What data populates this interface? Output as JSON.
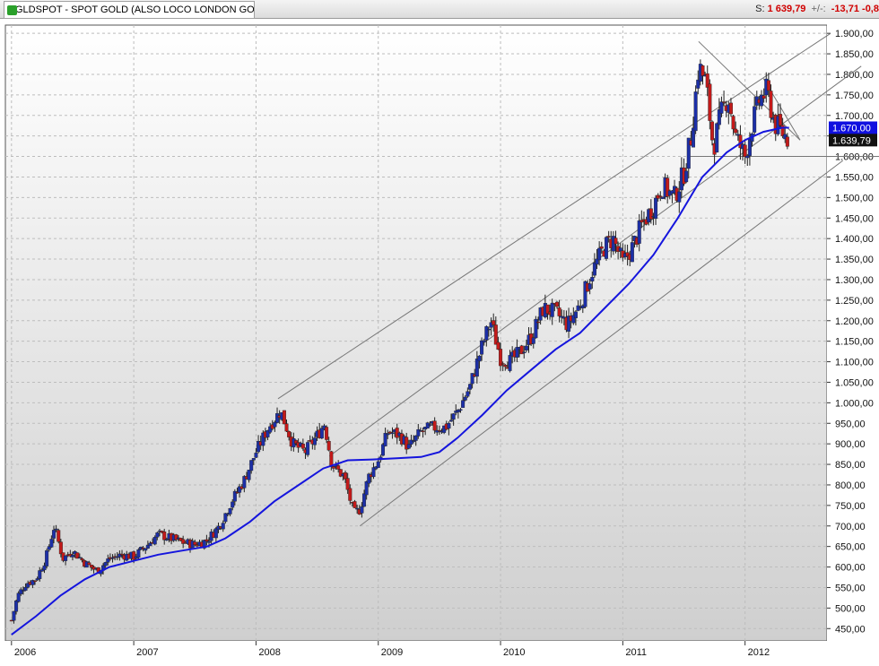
{
  "header": {
    "symbol_title": "GLDSPOT - SPOT GOLD (ALSO LOCO LONDON GO",
    "quote_prefix": "S:",
    "last_price": "1 639,79",
    "change_label": "+/-:",
    "change_value": "-13,71",
    "change_pct": "-0,8"
  },
  "colors": {
    "background_top": "#ffffff",
    "background_bottom": "#cfcfcf",
    "up_candle": "#1c2fa8",
    "down_candle": "#c41a1a",
    "moving_average": "#1515dd",
    "trendlines": "#777777",
    "grid": "#bdbdbd"
  },
  "chart_data": {
    "type": "candlestick",
    "title": "GLDSPOT - SPOT GOLD (ALSO LOCO LONDON GO",
    "interval": "weekly",
    "x_range": [
      "2006-01",
      "2012-12"
    ],
    "ylim": [
      420,
      1920
    ],
    "y_ticks": [
      450,
      500,
      550,
      600,
      650,
      700,
      750,
      800,
      850,
      900,
      950,
      1000,
      1050,
      1100,
      1150,
      1200,
      1250,
      1300,
      1350,
      1400,
      1450,
      1500,
      1550,
      1600,
      1650,
      1700,
      1750,
      1800,
      1850,
      1900
    ],
    "y_tick_labels": [
      "450,00",
      "500,00",
      "550,00",
      "600,00",
      "650,00",
      "700,00",
      "750,00",
      "800,00",
      "850,00",
      "900,00",
      "950,00",
      "1.000,00",
      "1.050,00",
      "1.100,00",
      "1.150,00",
      "1.200,00",
      "1.250,00",
      "1.300,00",
      "1.350,00",
      "1.400,00",
      "1.450,00",
      "1.500,00",
      "1.550,00",
      "1.600,00",
      "1.650,00",
      "1.700,00",
      "1.750,00",
      "1.800,00",
      "1.850,00",
      "1.900,00"
    ],
    "x_ticks": [
      2006,
      2007,
      2008,
      2009,
      2010,
      2011,
      2012
    ],
    "x_tick_labels": [
      "2006",
      "2007",
      "2008",
      "2009",
      "2010",
      "2011",
      "2012"
    ],
    "price_anchors": [
      [
        2006.0,
        470
      ],
      [
        2006.05,
        530
      ],
      [
        2006.12,
        560
      ],
      [
        2006.2,
        570
      ],
      [
        2006.28,
        620
      ],
      [
        2006.35,
        700
      ],
      [
        2006.42,
        620
      ],
      [
        2006.5,
        640
      ],
      [
        2006.6,
        610
      ],
      [
        2006.7,
        590
      ],
      [
        2006.8,
        620
      ],
      [
        2006.9,
        630
      ],
      [
        2007.0,
        625
      ],
      [
        2007.1,
        650
      ],
      [
        2007.2,
        680
      ],
      [
        2007.3,
        670
      ],
      [
        2007.4,
        660
      ],
      [
        2007.5,
        655
      ],
      [
        2007.6,
        665
      ],
      [
        2007.7,
        700
      ],
      [
        2007.8,
        760
      ],
      [
        2007.9,
        810
      ],
      [
        2008.0,
        880
      ],
      [
        2008.1,
        940
      ],
      [
        2008.2,
        980
      ],
      [
        2008.3,
        900
      ],
      [
        2008.4,
        880
      ],
      [
        2008.5,
        920
      ],
      [
        2008.56,
        950
      ],
      [
        2008.62,
        850
      ],
      [
        2008.72,
        820
      ],
      [
        2008.8,
        730
      ],
      [
        2008.85,
        740
      ],
      [
        2008.92,
        820
      ],
      [
        2009.0,
        860
      ],
      [
        2009.08,
        930
      ],
      [
        2009.18,
        920
      ],
      [
        2009.25,
        890
      ],
      [
        2009.35,
        930
      ],
      [
        2009.45,
        940
      ],
      [
        2009.55,
        940
      ],
      [
        2009.65,
        980
      ],
      [
        2009.75,
        1040
      ],
      [
        2009.85,
        1140
      ],
      [
        2009.92,
        1200
      ],
      [
        2010.0,
        1110
      ],
      [
        2010.08,
        1100
      ],
      [
        2010.15,
        1120
      ],
      [
        2010.25,
        1160
      ],
      [
        2010.35,
        1230
      ],
      [
        2010.45,
        1220
      ],
      [
        2010.55,
        1190
      ],
      [
        2010.65,
        1240
      ],
      [
        2010.75,
        1320
      ],
      [
        2010.85,
        1380
      ],
      [
        2010.92,
        1400
      ],
      [
        2011.0,
        1340
      ],
      [
        2011.08,
        1380
      ],
      [
        2011.15,
        1430
      ],
      [
        2011.25,
        1480
      ],
      [
        2011.32,
        1530
      ],
      [
        2011.42,
        1500
      ],
      [
        2011.5,
        1560
      ],
      [
        2011.56,
        1650
      ],
      [
        2011.62,
        1820
      ],
      [
        2011.68,
        1780
      ],
      [
        2011.74,
        1620
      ],
      [
        2011.8,
        1700
      ],
      [
        2011.86,
        1750
      ],
      [
        2011.92,
        1650
      ],
      [
        2012.0,
        1600
      ],
      [
        2012.06,
        1680
      ],
      [
        2012.12,
        1740
      ],
      [
        2012.18,
        1760
      ],
      [
        2012.24,
        1680
      ],
      [
        2012.3,
        1660
      ],
      [
        2012.36,
        1640
      ]
    ],
    "moving_average": [
      [
        2006.0,
        435
      ],
      [
        2006.2,
        480
      ],
      [
        2006.4,
        530
      ],
      [
        2006.6,
        570
      ],
      [
        2006.8,
        600
      ],
      [
        2007.0,
        615
      ],
      [
        2007.2,
        630
      ],
      [
        2007.4,
        640
      ],
      [
        2007.6,
        650
      ],
      [
        2007.75,
        670
      ],
      [
        2007.95,
        710
      ],
      [
        2008.15,
        760
      ],
      [
        2008.35,
        800
      ],
      [
        2008.55,
        840
      ],
      [
        2008.75,
        860
      ],
      [
        2008.95,
        862
      ],
      [
        2009.15,
        865
      ],
      [
        2009.35,
        868
      ],
      [
        2009.5,
        880
      ],
      [
        2009.65,
        915
      ],
      [
        2009.85,
        970
      ],
      [
        2010.05,
        1030
      ],
      [
        2010.25,
        1080
      ],
      [
        2010.45,
        1130
      ],
      [
        2010.65,
        1170
      ],
      [
        2010.85,
        1230
      ],
      [
        2011.05,
        1290
      ],
      [
        2011.25,
        1360
      ],
      [
        2011.45,
        1450
      ],
      [
        2011.65,
        1550
      ],
      [
        2011.85,
        1610
      ],
      [
        2012.0,
        1640
      ],
      [
        2012.15,
        1660
      ],
      [
        2012.3,
        1670
      ],
      [
        2012.36,
        1670
      ]
    ],
    "trendlines": [
      {
        "from": [
          2008.18,
          1010
        ],
        "to": [
          2012.7,
          1900
        ]
      },
      {
        "from": [
          2008.6,
          870
        ],
        "to": [
          2012.95,
          1820
        ]
      },
      {
        "from": [
          2008.85,
          700
        ],
        "to": [
          2012.8,
          1590
        ]
      },
      {
        "from": [
          2011.62,
          1880
        ],
        "to": [
          2012.45,
          1640
        ]
      },
      {
        "from": [
          2012.15,
          1790
        ],
        "to": [
          2012.45,
          1640
        ]
      }
    ],
    "horizontal_line": 1600,
    "price_tags": [
      {
        "label": "1.670,00",
        "value": 1670,
        "kind": "moving_average"
      },
      {
        "label": "1.639,79",
        "value": 1639.79,
        "kind": "last_price"
      }
    ],
    "grid": true
  }
}
